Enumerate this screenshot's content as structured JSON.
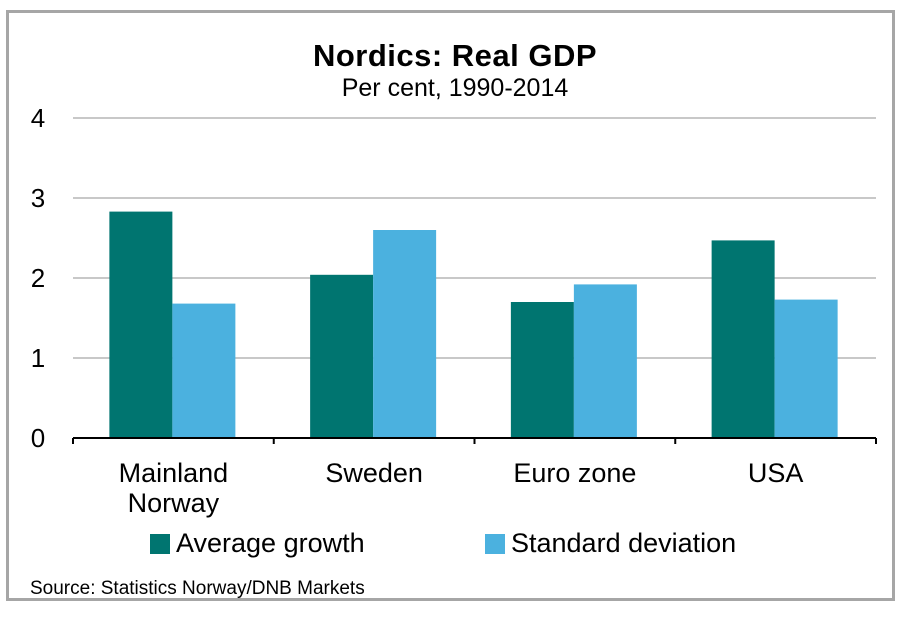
{
  "chart_data": {
    "type": "bar",
    "title": "Nordics:  Real GDP",
    "subtitle": "Per cent, 1990-2014",
    "categories": [
      [
        "Mainland",
        "Norway"
      ],
      [
        "Sweden"
      ],
      [
        "Euro zone"
      ],
      [
        "USA"
      ]
    ],
    "series": [
      {
        "name": "Average growth",
        "color": "#007570",
        "values": [
          2.83,
          2.04,
          1.7,
          2.47
        ]
      },
      {
        "name": "Standard deviation",
        "color": "#4bb1df",
        "values": [
          1.68,
          2.6,
          1.92,
          1.73
        ]
      }
    ],
    "ylim": [
      0,
      4
    ],
    "yticks": [
      "0",
      "1",
      "2",
      "3",
      "4"
    ],
    "grid": true,
    "legend_position": "bottom",
    "source": "Source:  Statistics Norway/DNB  Markets"
  }
}
